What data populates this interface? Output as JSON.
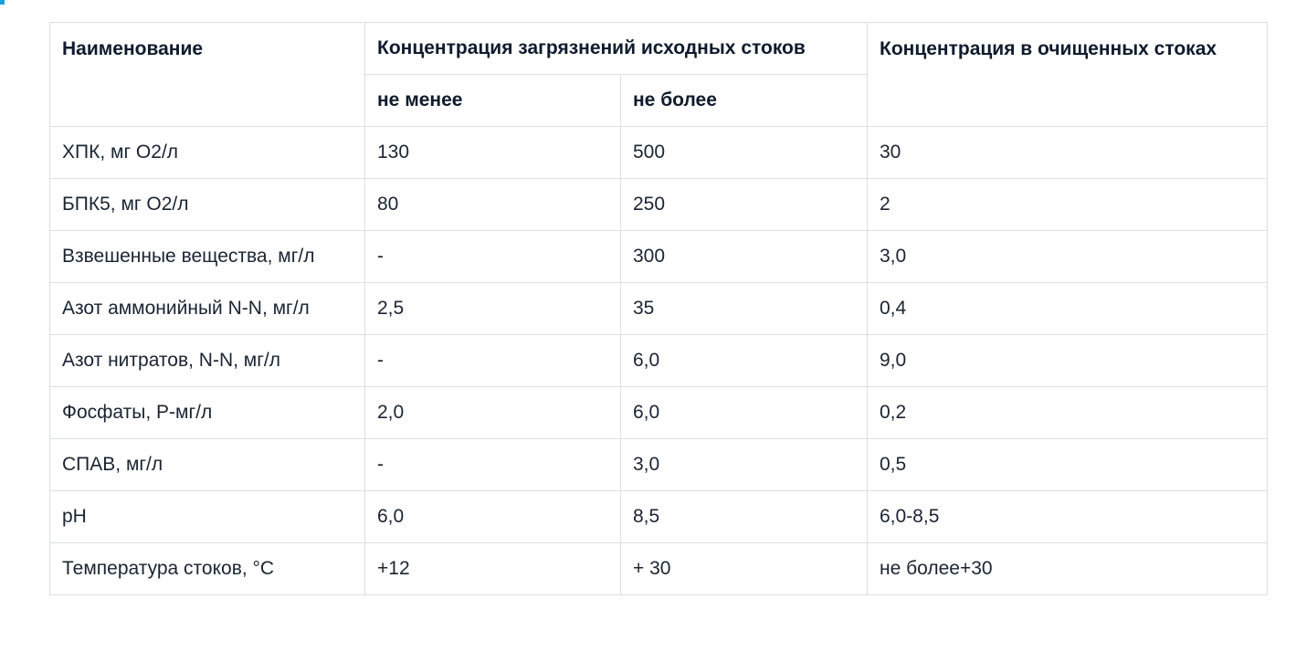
{
  "table": {
    "header": {
      "name": "Наименование",
      "source_group": "Концентрация загрязнений исходных стоков",
      "min": "не менее",
      "max": "не более",
      "treated": "Концентрация в очищенных стоках"
    },
    "rows": [
      {
        "name": "ХПК, мг О2/л",
        "min": "130",
        "max": "500",
        "treated": "30"
      },
      {
        "name": "БПК5, мг О2/л",
        "min": "80",
        "max": "250",
        "treated": "2"
      },
      {
        "name": "Взвешенные вещества, мг/л",
        "min": "-",
        "max": "300",
        "treated": "3,0"
      },
      {
        "name": "Азот аммонийный N-N, мг/л",
        "min": "2,5",
        "max": "35",
        "treated": "0,4"
      },
      {
        "name": "Азот нитратов, N-N, мг/л",
        "min": "-",
        "max": "6,0",
        "treated": "9,0"
      },
      {
        "name": "Фосфаты, Р-мг/л",
        "min": "2,0",
        "max": "6,0",
        "treated": "0,2"
      },
      {
        "name": "СПАВ, мг/л",
        "min": "-",
        "max": "3,0",
        "treated": "0,5"
      },
      {
        "name": "pH",
        "min": "6,0",
        "max": "8,5",
        "treated": "6,0-8,5"
      },
      {
        "name": "Температура стоков, °С",
        "min": "+12",
        "max": "+ 30",
        "treated": "не более+30"
      }
    ]
  },
  "colors": {
    "accent": "#1aa0e0",
    "border": "#dcdfe4",
    "text": "#0f1b2d"
  }
}
